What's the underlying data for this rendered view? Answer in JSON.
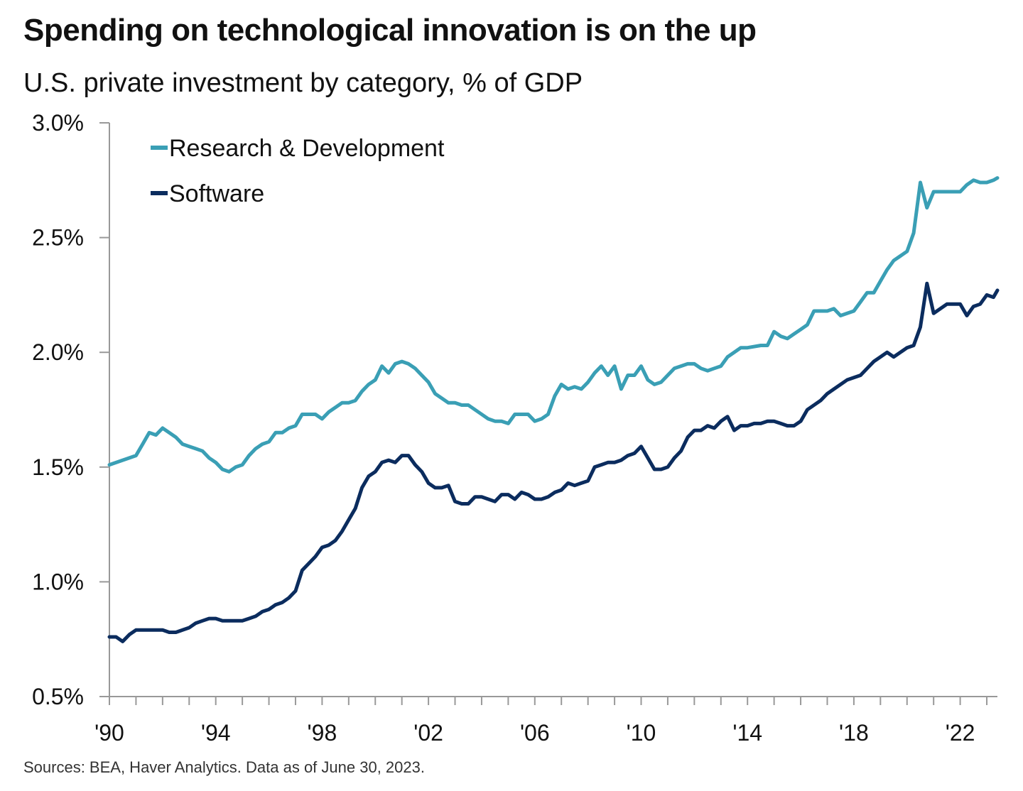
{
  "header": {
    "title": "Spending on technological innovation is on the up",
    "subtitle": "U.S. private investment by category, % of GDP"
  },
  "footer": {
    "source": "Sources: BEA, Haver Analytics. Data as of June 30, 2023."
  },
  "colors": {
    "research_development": "#3a9fb5",
    "software": "#0b2c5e",
    "axis": "#999999"
  },
  "chart_data": {
    "type": "line",
    "title": "Spending on technological innovation is on the up",
    "subtitle": "U.S. private investment by category, % of GDP",
    "xlabel": "",
    "ylabel": "",
    "xlim": [
      1990,
      2023.4
    ],
    "ylim": [
      0.5,
      3.0
    ],
    "y_ticks": [
      0.5,
      1.0,
      1.5,
      2.0,
      2.5,
      3.0
    ],
    "y_tick_labels": [
      "0.5%",
      "1.0%",
      "1.5%",
      "2.0%",
      "2.5%",
      "3.0%"
    ],
    "x_ticks": [
      1990,
      1994,
      1998,
      2002,
      2006,
      2010,
      2014,
      2018,
      2022
    ],
    "x_tick_labels": [
      "'90",
      "'94",
      "'98",
      "'02",
      "'06",
      "'10",
      "'14",
      "'18",
      "'22"
    ],
    "grid": false,
    "legend_position": "top-left",
    "series": [
      {
        "name": "Research & Development",
        "color": "#3a9fb5",
        "points": [
          [
            1990.0,
            1.51
          ],
          [
            1990.5,
            1.53
          ],
          [
            1990.75,
            1.54
          ],
          [
            1991.0,
            1.55
          ],
          [
            1991.25,
            1.6
          ],
          [
            1991.5,
            1.65
          ],
          [
            1991.75,
            1.64
          ],
          [
            1992.0,
            1.67
          ],
          [
            1992.25,
            1.65
          ],
          [
            1992.5,
            1.63
          ],
          [
            1992.75,
            1.6
          ],
          [
            1993.0,
            1.59
          ],
          [
            1993.25,
            1.58
          ],
          [
            1993.5,
            1.57
          ],
          [
            1993.75,
            1.54
          ],
          [
            1994.0,
            1.52
          ],
          [
            1994.25,
            1.49
          ],
          [
            1994.5,
            1.48
          ],
          [
            1994.75,
            1.5
          ],
          [
            1995.0,
            1.51
          ],
          [
            1995.25,
            1.55
          ],
          [
            1995.5,
            1.58
          ],
          [
            1995.75,
            1.6
          ],
          [
            1996.0,
            1.61
          ],
          [
            1996.25,
            1.65
          ],
          [
            1996.5,
            1.65
          ],
          [
            1996.75,
            1.67
          ],
          [
            1997.0,
            1.68
          ],
          [
            1997.25,
            1.73
          ],
          [
            1997.5,
            1.73
          ],
          [
            1997.75,
            1.73
          ],
          [
            1998.0,
            1.71
          ],
          [
            1998.25,
            1.74
          ],
          [
            1998.5,
            1.76
          ],
          [
            1998.75,
            1.78
          ],
          [
            1999.0,
            1.78
          ],
          [
            1999.25,
            1.79
          ],
          [
            1999.5,
            1.83
          ],
          [
            1999.75,
            1.86
          ],
          [
            2000.0,
            1.88
          ],
          [
            2000.25,
            1.94
          ],
          [
            2000.5,
            1.91
          ],
          [
            2000.75,
            1.95
          ],
          [
            2001.0,
            1.96
          ],
          [
            2001.25,
            1.95
          ],
          [
            2001.5,
            1.93
          ],
          [
            2001.75,
            1.9
          ],
          [
            2002.0,
            1.87
          ],
          [
            2002.25,
            1.82
          ],
          [
            2002.5,
            1.8
          ],
          [
            2002.75,
            1.78
          ],
          [
            2003.0,
            1.78
          ],
          [
            2003.25,
            1.77
          ],
          [
            2003.5,
            1.77
          ],
          [
            2003.75,
            1.75
          ],
          [
            2004.0,
            1.73
          ],
          [
            2004.25,
            1.71
          ],
          [
            2004.5,
            1.7
          ],
          [
            2004.75,
            1.7
          ],
          [
            2005.0,
            1.69
          ],
          [
            2005.25,
            1.73
          ],
          [
            2005.5,
            1.73
          ],
          [
            2005.75,
            1.73
          ],
          [
            2006.0,
            1.7
          ],
          [
            2006.25,
            1.71
          ],
          [
            2006.5,
            1.73
          ],
          [
            2006.75,
            1.81
          ],
          [
            2007.0,
            1.86
          ],
          [
            2007.25,
            1.84
          ],
          [
            2007.5,
            1.85
          ],
          [
            2007.75,
            1.84
          ],
          [
            2008.0,
            1.87
          ],
          [
            2008.25,
            1.91
          ],
          [
            2008.5,
            1.94
          ],
          [
            2008.75,
            1.9
          ],
          [
            2009.0,
            1.94
          ],
          [
            2009.25,
            1.84
          ],
          [
            2009.5,
            1.9
          ],
          [
            2009.75,
            1.9
          ],
          [
            2010.0,
            1.94
          ],
          [
            2010.25,
            1.88
          ],
          [
            2010.5,
            1.86
          ],
          [
            2010.75,
            1.87
          ],
          [
            2011.0,
            1.9
          ],
          [
            2011.25,
            1.93
          ],
          [
            2011.5,
            1.94
          ],
          [
            2011.75,
            1.95
          ],
          [
            2012.0,
            1.95
          ],
          [
            2012.25,
            1.93
          ],
          [
            2012.5,
            1.92
          ],
          [
            2012.75,
            1.93
          ],
          [
            2013.0,
            1.94
          ],
          [
            2013.25,
            1.98
          ],
          [
            2013.5,
            2.0
          ],
          [
            2013.75,
            2.02
          ],
          [
            2014.0,
            2.02
          ],
          [
            2014.5,
            2.03
          ],
          [
            2014.75,
            2.03
          ],
          [
            2015.0,
            2.09
          ],
          [
            2015.25,
            2.07
          ],
          [
            2015.5,
            2.06
          ],
          [
            2015.75,
            2.08
          ],
          [
            2016.0,
            2.1
          ],
          [
            2016.25,
            2.12
          ],
          [
            2016.5,
            2.18
          ],
          [
            2016.75,
            2.18
          ],
          [
            2017.0,
            2.18
          ],
          [
            2017.25,
            2.19
          ],
          [
            2017.5,
            2.16
          ],
          [
            2017.75,
            2.17
          ],
          [
            2018.0,
            2.18
          ],
          [
            2018.25,
            2.22
          ],
          [
            2018.5,
            2.26
          ],
          [
            2018.75,
            2.26
          ],
          [
            2019.0,
            2.31
          ],
          [
            2019.25,
            2.36
          ],
          [
            2019.5,
            2.4
          ],
          [
            2019.75,
            2.42
          ],
          [
            2020.0,
            2.44
          ],
          [
            2020.25,
            2.52
          ],
          [
            2020.5,
            2.74
          ],
          [
            2020.75,
            2.63
          ],
          [
            2021.0,
            2.7
          ],
          [
            2021.25,
            2.7
          ],
          [
            2021.5,
            2.7
          ],
          [
            2021.75,
            2.7
          ],
          [
            2022.0,
            2.7
          ],
          [
            2022.25,
            2.73
          ],
          [
            2022.5,
            2.75
          ],
          [
            2022.75,
            2.74
          ],
          [
            2023.0,
            2.74
          ],
          [
            2023.25,
            2.75
          ],
          [
            2023.4,
            2.76
          ]
        ]
      },
      {
        "name": "Software",
        "color": "#0b2c5e",
        "points": [
          [
            1990.0,
            0.76
          ],
          [
            1990.25,
            0.76
          ],
          [
            1990.5,
            0.74
          ],
          [
            1990.75,
            0.77
          ],
          [
            1991.0,
            0.79
          ],
          [
            1991.25,
            0.79
          ],
          [
            1991.5,
            0.79
          ],
          [
            1991.75,
            0.79
          ],
          [
            1992.0,
            0.79
          ],
          [
            1992.25,
            0.78
          ],
          [
            1992.5,
            0.78
          ],
          [
            1992.75,
            0.79
          ],
          [
            1993.0,
            0.8
          ],
          [
            1993.25,
            0.82
          ],
          [
            1993.5,
            0.83
          ],
          [
            1993.75,
            0.84
          ],
          [
            1994.0,
            0.84
          ],
          [
            1994.25,
            0.83
          ],
          [
            1994.5,
            0.83
          ],
          [
            1994.75,
            0.83
          ],
          [
            1995.0,
            0.83
          ],
          [
            1995.25,
            0.84
          ],
          [
            1995.5,
            0.85
          ],
          [
            1995.75,
            0.87
          ],
          [
            1996.0,
            0.88
          ],
          [
            1996.25,
            0.9
          ],
          [
            1996.5,
            0.91
          ],
          [
            1996.75,
            0.93
          ],
          [
            1997.0,
            0.96
          ],
          [
            1997.25,
            1.05
          ],
          [
            1997.5,
            1.08
          ],
          [
            1997.75,
            1.11
          ],
          [
            1998.0,
            1.15
          ],
          [
            1998.25,
            1.16
          ],
          [
            1998.5,
            1.18
          ],
          [
            1998.75,
            1.22
          ],
          [
            1999.0,
            1.27
          ],
          [
            1999.25,
            1.32
          ],
          [
            1999.5,
            1.41
          ],
          [
            1999.75,
            1.46
          ],
          [
            2000.0,
            1.48
          ],
          [
            2000.25,
            1.52
          ],
          [
            2000.5,
            1.53
          ],
          [
            2000.75,
            1.52
          ],
          [
            2001.0,
            1.55
          ],
          [
            2001.25,
            1.55
          ],
          [
            2001.5,
            1.51
          ],
          [
            2001.75,
            1.48
          ],
          [
            2002.0,
            1.43
          ],
          [
            2002.25,
            1.41
          ],
          [
            2002.5,
            1.41
          ],
          [
            2002.75,
            1.42
          ],
          [
            2003.0,
            1.35
          ],
          [
            2003.25,
            1.34
          ],
          [
            2003.5,
            1.34
          ],
          [
            2003.75,
            1.37
          ],
          [
            2004.0,
            1.37
          ],
          [
            2004.25,
            1.36
          ],
          [
            2004.5,
            1.35
          ],
          [
            2004.75,
            1.38
          ],
          [
            2005.0,
            1.38
          ],
          [
            2005.25,
            1.36
          ],
          [
            2005.5,
            1.39
          ],
          [
            2005.75,
            1.38
          ],
          [
            2006.0,
            1.36
          ],
          [
            2006.25,
            1.36
          ],
          [
            2006.5,
            1.37
          ],
          [
            2006.75,
            1.39
          ],
          [
            2007.0,
            1.4
          ],
          [
            2007.25,
            1.43
          ],
          [
            2007.5,
            1.42
          ],
          [
            2007.75,
            1.43
          ],
          [
            2008.0,
            1.44
          ],
          [
            2008.25,
            1.5
          ],
          [
            2008.5,
            1.51
          ],
          [
            2008.75,
            1.52
          ],
          [
            2009.0,
            1.52
          ],
          [
            2009.25,
            1.53
          ],
          [
            2009.5,
            1.55
          ],
          [
            2009.75,
            1.56
          ],
          [
            2010.0,
            1.59
          ],
          [
            2010.25,
            1.54
          ],
          [
            2010.5,
            1.49
          ],
          [
            2010.75,
            1.49
          ],
          [
            2011.0,
            1.5
          ],
          [
            2011.25,
            1.54
          ],
          [
            2011.5,
            1.57
          ],
          [
            2011.75,
            1.63
          ],
          [
            2012.0,
            1.66
          ],
          [
            2012.25,
            1.66
          ],
          [
            2012.5,
            1.68
          ],
          [
            2012.75,
            1.67
          ],
          [
            2013.0,
            1.7
          ],
          [
            2013.25,
            1.72
          ],
          [
            2013.5,
            1.66
          ],
          [
            2013.75,
            1.68
          ],
          [
            2014.0,
            1.68
          ],
          [
            2014.25,
            1.69
          ],
          [
            2014.5,
            1.69
          ],
          [
            2014.75,
            1.7
          ],
          [
            2015.0,
            1.7
          ],
          [
            2015.25,
            1.69
          ],
          [
            2015.5,
            1.68
          ],
          [
            2015.75,
            1.68
          ],
          [
            2016.0,
            1.7
          ],
          [
            2016.25,
            1.75
          ],
          [
            2016.5,
            1.77
          ],
          [
            2016.75,
            1.79
          ],
          [
            2017.0,
            1.82
          ],
          [
            2017.25,
            1.84
          ],
          [
            2017.5,
            1.86
          ],
          [
            2017.75,
            1.88
          ],
          [
            2018.0,
            1.89
          ],
          [
            2018.25,
            1.9
          ],
          [
            2018.5,
            1.93
          ],
          [
            2018.75,
            1.96
          ],
          [
            2019.0,
            1.98
          ],
          [
            2019.25,
            2.0
          ],
          [
            2019.5,
            1.98
          ],
          [
            2019.75,
            2.0
          ],
          [
            2020.0,
            2.02
          ],
          [
            2020.25,
            2.03
          ],
          [
            2020.5,
            2.11
          ],
          [
            2020.75,
            2.3
          ],
          [
            2021.0,
            2.17
          ],
          [
            2021.25,
            2.19
          ],
          [
            2021.5,
            2.21
          ],
          [
            2021.75,
            2.21
          ],
          [
            2022.0,
            2.21
          ],
          [
            2022.25,
            2.16
          ],
          [
            2022.5,
            2.2
          ],
          [
            2022.75,
            2.21
          ],
          [
            2023.0,
            2.25
          ],
          [
            2023.25,
            2.24
          ],
          [
            2023.4,
            2.27
          ]
        ]
      }
    ]
  }
}
